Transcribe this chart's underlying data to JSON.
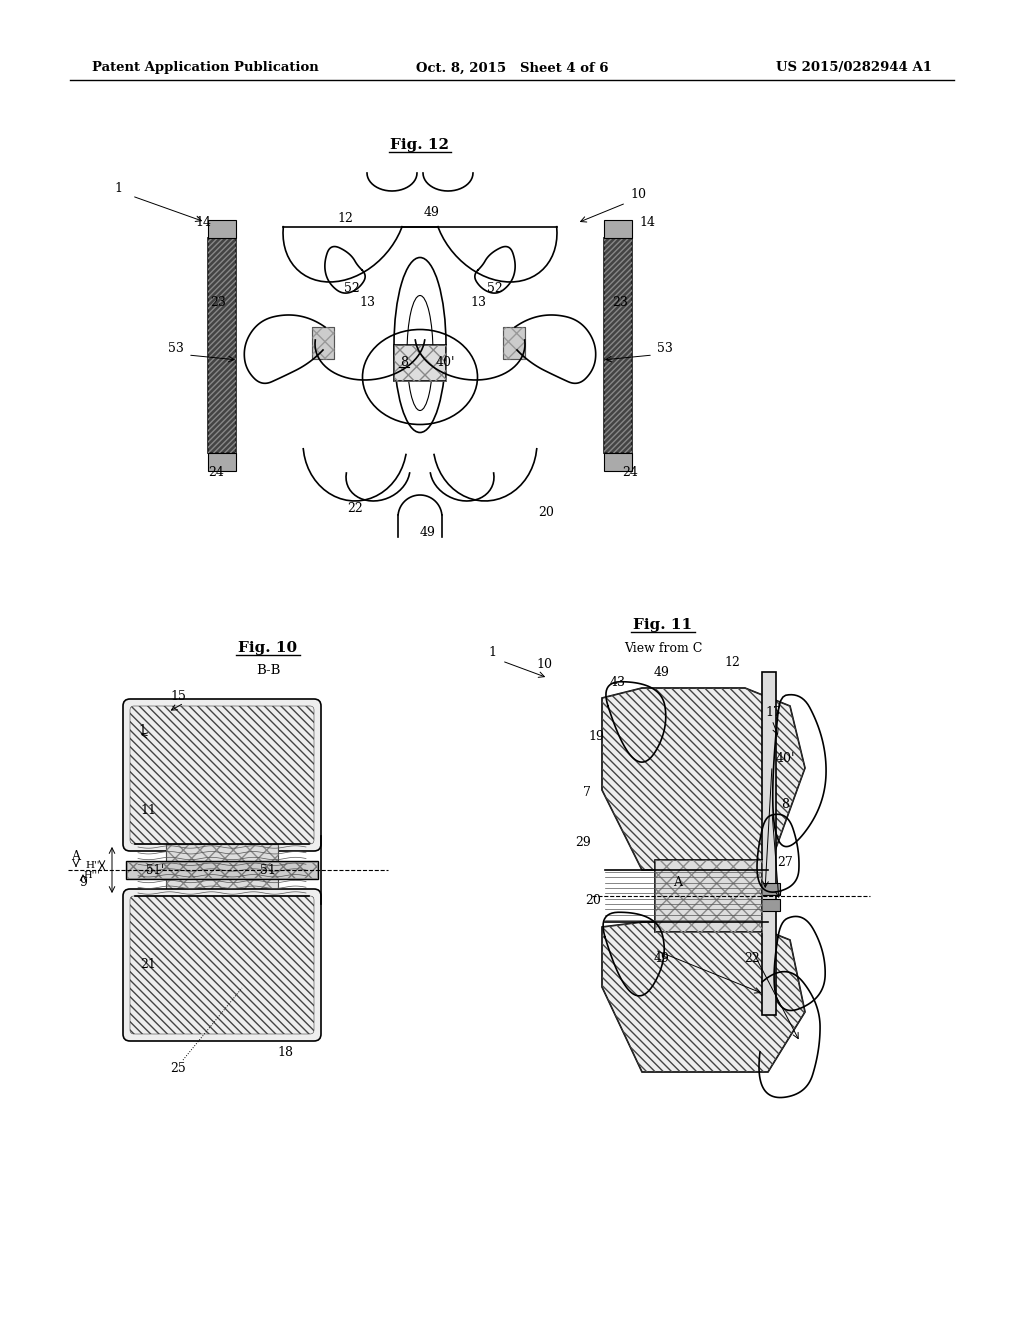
{
  "bg_color": "#ffffff",
  "header_left": "Patent Application Publication",
  "header_center": "Oct. 8, 2015   Sheet 4 of 6",
  "header_right": "US 2015/0282944 A1",
  "fig12_title": "Fig. 12",
  "fig10_title": "Fig. 10",
  "fig10_sub": "B-B",
  "fig11_title": "Fig. 11",
  "fig11_sub": "View from C",
  "line_color": "#000000",
  "gray_dark": "#444444",
  "gray_medium": "#888888",
  "gray_light": "#cccccc",
  "gray_vlight": "#eeeeee",
  "hatch_dark": "#444444",
  "hatch_mid": "#777777"
}
